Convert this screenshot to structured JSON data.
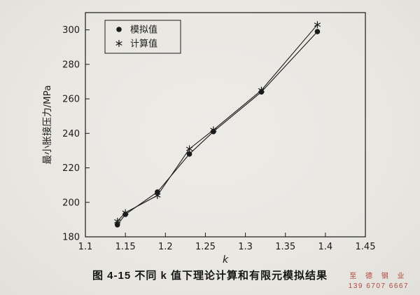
{
  "page": {
    "caption": "图 4-15  不同 k 值下理论计算和有限元模拟结果",
    "watermark": {
      "company": "至 德 钢 业",
      "phone": "139 6707 6667",
      "color": "#b5443c"
    },
    "paper_color": "#e9e7e2",
    "ink_color": "#1b1b1b"
  },
  "chart_data": {
    "type": "line",
    "title": "",
    "xlabel": "k",
    "ylabel": "最小胀接压力/MPa",
    "xlim": [
      1.1,
      1.45
    ],
    "ylim": [
      180,
      310
    ],
    "xtick_labels": [
      "1.1",
      "1.15",
      "1.2",
      "1.25",
      "1.3",
      "1.35",
      "1.4",
      "1.45"
    ],
    "ytick_labels": [
      "180",
      "200",
      "220",
      "240",
      "260",
      "280",
      "300"
    ],
    "grid": false,
    "legend_position": "top-left",
    "legend_entries": [
      "模拟值",
      "计算值"
    ],
    "series": [
      {
        "name": "模拟值",
        "marker": "circle",
        "x": [
          1.14,
          1.15,
          1.19,
          1.23,
          1.26,
          1.32,
          1.39
        ],
        "y": [
          187,
          193,
          206,
          228,
          241,
          264,
          299
        ]
      },
      {
        "name": "计算值",
        "marker": "asterisk",
        "x": [
          1.14,
          1.15,
          1.19,
          1.23,
          1.26,
          1.32,
          1.39
        ],
        "y": [
          189,
          194,
          204,
          231,
          242,
          265,
          303
        ]
      }
    ]
  }
}
